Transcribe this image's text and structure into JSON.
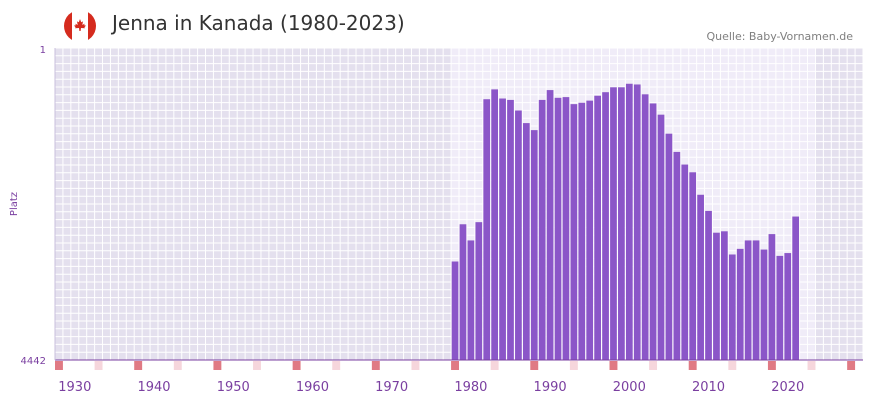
{
  "header": {
    "title": "Jenna in Kanada (1980-2023)",
    "source": "Quelle: Baby-Vornamen.de",
    "flag_icon": "canada-flag-icon"
  },
  "colors": {
    "bar": "#8b56c8",
    "plot_bg_inner": "#f0ecf8",
    "plot_bg_outer": "#e4e0ee",
    "grid": "#ffffff",
    "axis": "#7a3fa0",
    "tick_label": "#7a3fa0",
    "marker_strong": "#e07a84",
    "marker_light": "#f6d6dc"
  },
  "chart_data": {
    "type": "bar",
    "title": "Jenna in Kanada (1980-2023)",
    "xlabel": "",
    "ylabel": "Platz",
    "y_axis_inverted": true,
    "ylim": [
      4442,
      1
    ],
    "y_tick_labels": [
      "1",
      "4442"
    ],
    "xlim": [
      1928,
      2029
    ],
    "x_ticks": [
      1930,
      1940,
      1950,
      1960,
      1970,
      1980,
      1990,
      2000,
      2010,
      2020
    ],
    "x_tick_labels": [
      "1930",
      "1940",
      "1950",
      "1960",
      "1970",
      "1980",
      "1990",
      "2000",
      "2010",
      "2020"
    ],
    "highlight_range": [
      1978,
      2023
    ],
    "grid": true,
    "years": [
      1978,
      1979,
      1980,
      1981,
      1982,
      1983,
      1984,
      1985,
      1986,
      1987,
      1988,
      1989,
      1990,
      1991,
      1992,
      1993,
      1994,
      1995,
      1996,
      1997,
      1998,
      1999,
      2000,
      2001,
      2002,
      2003,
      2004,
      2005,
      2006,
      2007,
      2008,
      2009,
      2010,
      2011,
      2012,
      2013,
      2014,
      2015,
      2016,
      2017,
      2018,
      2019,
      2020,
      2021
    ],
    "values": [
      3040,
      2510,
      2740,
      2480,
      730,
      590,
      720,
      740,
      890,
      1070,
      1170,
      740,
      600,
      710,
      700,
      800,
      780,
      750,
      680,
      630,
      560,
      560,
      510,
      520,
      660,
      790,
      950,
      1220,
      1480,
      1660,
      1770,
      2090,
      2320,
      2630,
      2610,
      2940,
      2860,
      2740,
      2740,
      2870,
      2650,
      2960,
      2920,
      2400
    ],
    "bottom_markers_strong": [
      1928,
      1938,
      1948,
      1958,
      1968,
      1978,
      1988,
      1998,
      2008,
      2018,
      2028
    ],
    "bottom_markers_light": [
      1933,
      1943,
      1953,
      1963,
      1973,
      1983,
      1993,
      2003,
      2013,
      2023
    ]
  }
}
